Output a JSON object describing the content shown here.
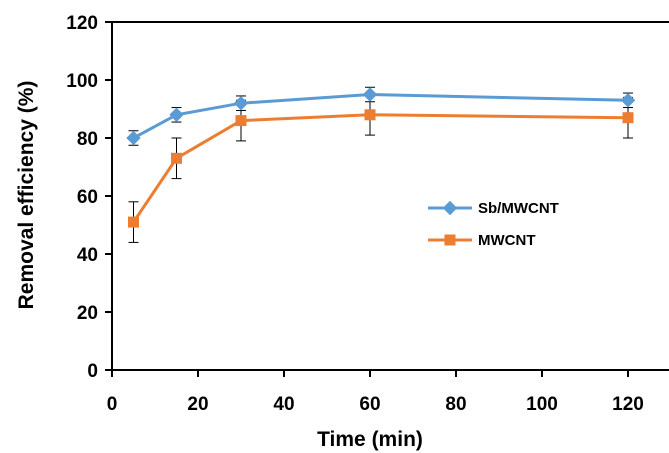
{
  "chart_data": {
    "type": "line",
    "title": "",
    "xlabel": "Time (min)",
    "ylabel": "Removal efficiency (%)",
    "xlim": [
      0,
      120
    ],
    "ylim": [
      0,
      120
    ],
    "xticks": [
      0,
      20,
      40,
      60,
      80,
      100,
      120
    ],
    "yticks": [
      0,
      20,
      40,
      60,
      80,
      100,
      120
    ],
    "grid": false,
    "legend_position": "center-right",
    "series": [
      {
        "name": "Sb/MWCNT",
        "color": "#5b9bd5",
        "marker": "diamond",
        "x": [
          5,
          15,
          30,
          60,
          120
        ],
        "y": [
          80,
          88,
          92,
          95,
          93
        ],
        "error": [
          2.5,
          2.5,
          2.5,
          2.5,
          2.5
        ]
      },
      {
        "name": "MWCNT",
        "color": "#ed7d31",
        "marker": "square",
        "x": [
          5,
          15,
          30,
          60,
          120
        ],
        "y": [
          51,
          73,
          86,
          88,
          87
        ],
        "error": [
          7,
          7,
          7,
          7,
          7
        ]
      }
    ]
  }
}
